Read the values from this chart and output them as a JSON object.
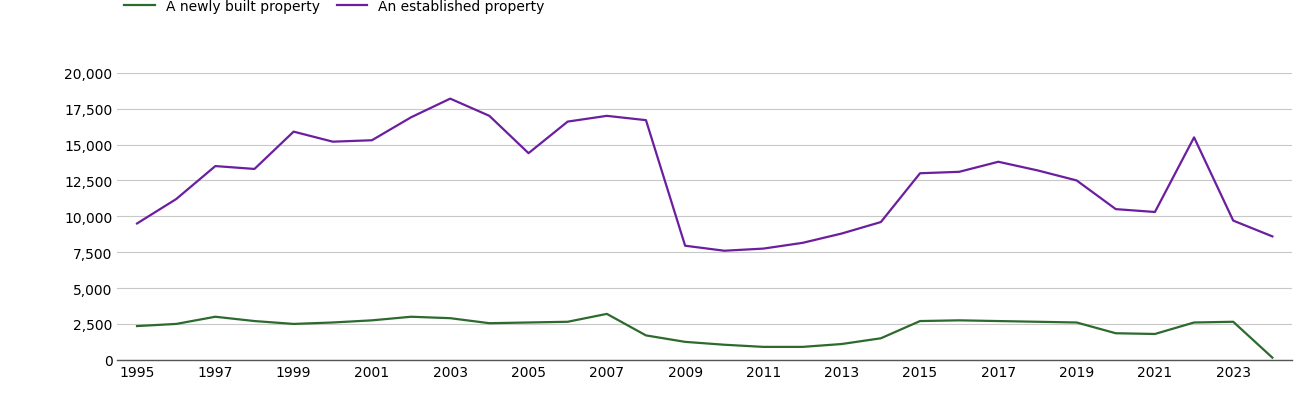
{
  "years": [
    1995,
    1996,
    1997,
    1998,
    1999,
    2000,
    2001,
    2002,
    2003,
    2004,
    2005,
    2006,
    2007,
    2008,
    2009,
    2010,
    2011,
    2012,
    2013,
    2014,
    2015,
    2016,
    2017,
    2018,
    2019,
    2020,
    2021,
    2022,
    2023,
    2024
  ],
  "new_builds": [
    2350,
    2500,
    3000,
    2700,
    2500,
    2600,
    2750,
    3000,
    2900,
    2550,
    2600,
    2650,
    3200,
    1700,
    1250,
    1050,
    900,
    900,
    1100,
    1500,
    2700,
    2750,
    2700,
    2650,
    2600,
    1850,
    1800,
    2600,
    2650,
    150
  ],
  "established": [
    9500,
    11200,
    13500,
    13300,
    15900,
    15200,
    15300,
    16900,
    18200,
    17000,
    14400,
    16600,
    17000,
    16700,
    7950,
    7600,
    7750,
    8150,
    8800,
    9600,
    13000,
    13100,
    13800,
    13200,
    12500,
    10500,
    10300,
    15500,
    9700,
    8600
  ],
  "new_builds_color": "#2d6a2d",
  "established_color": "#6b1f9e",
  "legend_labels": [
    "A newly built property",
    "An established property"
  ],
  "ylim": [
    0,
    20000
  ],
  "yticks": [
    0,
    2500,
    5000,
    7500,
    10000,
    12500,
    15000,
    17500,
    20000
  ],
  "xtick_years": [
    1995,
    1997,
    1999,
    2001,
    2003,
    2005,
    2007,
    2009,
    2011,
    2013,
    2015,
    2017,
    2019,
    2021,
    2023
  ],
  "background_color": "#ffffff",
  "grid_color": "#c8c8c8",
  "line_width": 1.6
}
